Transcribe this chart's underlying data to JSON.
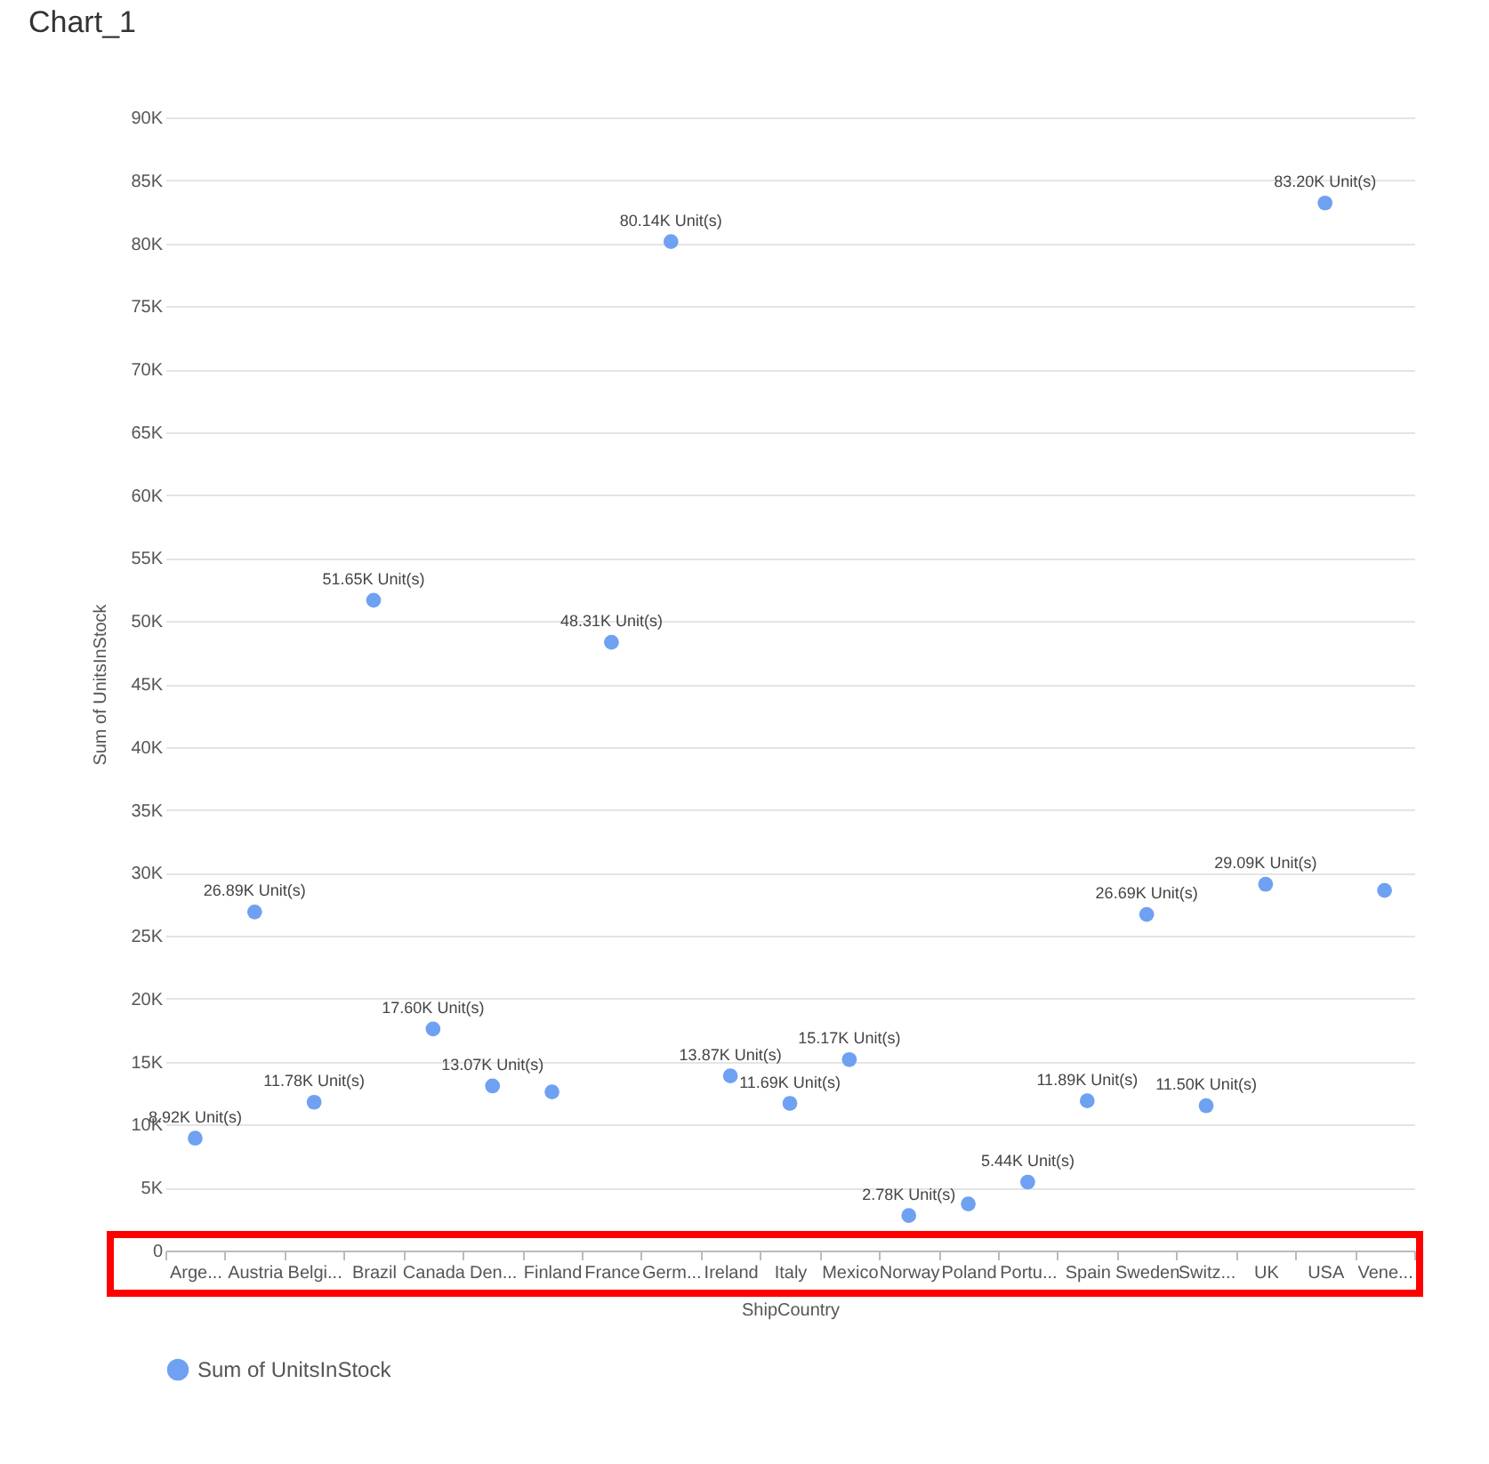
{
  "chart_data": {
    "type": "scatter",
    "title": "Chart_1",
    "xlabel": "ShipCountry",
    "ylabel": "Sum of UnitsInStock",
    "categories": [
      "Arge...",
      "Austria",
      "Belgi...",
      "Brazil",
      "Canada",
      "Den...",
      "Finland",
      "France",
      "Germ...",
      "Ireland",
      "Italy",
      "Mexico",
      "Norway",
      "Poland",
      "Portu...",
      "Spain",
      "Sweden",
      "Switz...",
      "UK",
      "USA",
      "Vene..."
    ],
    "series": [
      {
        "name": "Sum of UnitsInStock",
        "color": "#6fa1f2",
        "values": [
          8920,
          26890,
          11780,
          51650,
          17600,
          13070,
          12600,
          48310,
          80140,
          13870,
          11690,
          15170,
          2780,
          3700,
          5440,
          11890,
          26690,
          11500,
          29090,
          83200,
          28600
        ],
        "value_labels": [
          "8.92K Unit(s)",
          "26.89K Unit(s)",
          "11.78K Unit(s)",
          "51.65K Unit(s)",
          "17.60K Unit(s)",
          "13.07K Unit(s)",
          null,
          "48.31K Unit(s)",
          "80.14K Unit(s)",
          "13.87K Unit(s)",
          "11.69K Unit(s)",
          "15.17K Unit(s)",
          "2.78K Unit(s)",
          null,
          "5.44K Unit(s)",
          "11.89K Unit(s)",
          "26.69K Unit(s)",
          "11.50K Unit(s)",
          "29.09K Unit(s)",
          "83.20K Unit(s)",
          null
        ]
      }
    ],
    "ylim": [
      0,
      90000
    ],
    "yticks": [
      0,
      {
        "value": 5000,
        "label": "5K"
      },
      {
        "value": 10000,
        "label": "10K"
      },
      {
        "value": 15000,
        "label": "15K"
      },
      {
        "value": 20000,
        "label": "20K"
      },
      {
        "value": 25000,
        "label": "25K"
      },
      {
        "value": 30000,
        "label": "30K"
      },
      {
        "value": 35000,
        "label": "35K"
      },
      {
        "value": 40000,
        "label": "40K"
      },
      {
        "value": 45000,
        "label": "45K"
      },
      {
        "value": 50000,
        "label": "50K"
      },
      {
        "value": 55000,
        "label": "55K"
      },
      {
        "value": 60000,
        "label": "60K"
      },
      {
        "value": 65000,
        "label": "65K"
      },
      {
        "value": 70000,
        "label": "70K"
      },
      {
        "value": 75000,
        "label": "75K"
      },
      {
        "value": 80000,
        "label": "80K"
      },
      {
        "value": 85000,
        "label": "85K"
      },
      {
        "value": 90000,
        "label": "90K"
      }
    ],
    "grid": "y",
    "legend": "bottom",
    "marker": "circle"
  }
}
